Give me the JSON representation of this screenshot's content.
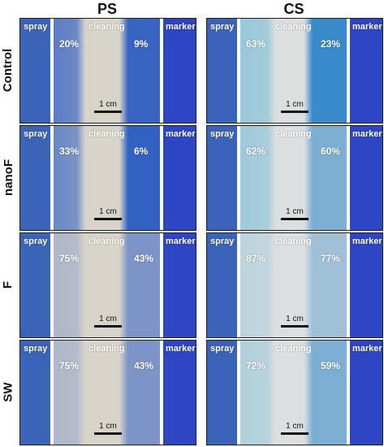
{
  "columns": [
    "PS",
    "CS"
  ],
  "labels": {
    "spray": "spray",
    "cleaning": "cleaning",
    "marker": "marker",
    "scale": "1 cm"
  },
  "rows": [
    {
      "name": "Control",
      "ps": {
        "left": "20%",
        "right": "9%"
      },
      "cs": {
        "left": "63%",
        "right": "23%"
      }
    },
    {
      "name": "nanoF",
      "ps": {
        "left": "33%",
        "right": "6%"
      },
      "cs": {
        "left": "62%",
        "right": "60%"
      }
    },
    {
      "name": "F",
      "ps": {
        "left": "75%",
        "right": "43%"
      },
      "cs": {
        "left": "87%",
        "right": "77%"
      }
    },
    {
      "name": "SW",
      "ps": {
        "left": "75%",
        "right": "43%"
      },
      "cs": {
        "left": "72%",
        "right": "59%"
      }
    }
  ],
  "colors": {
    "spray_blue": "#3b63b8",
    "marker_blue": "#2e45c4",
    "ps_cleaned": "#d9d4ca",
    "ps_residue_blue": "#2f5fc4",
    "cs_cleaned": "#dcdfe0",
    "cs_residue_light": "#5eb3d4",
    "cs_residue_dark": "#2f86c9"
  }
}
